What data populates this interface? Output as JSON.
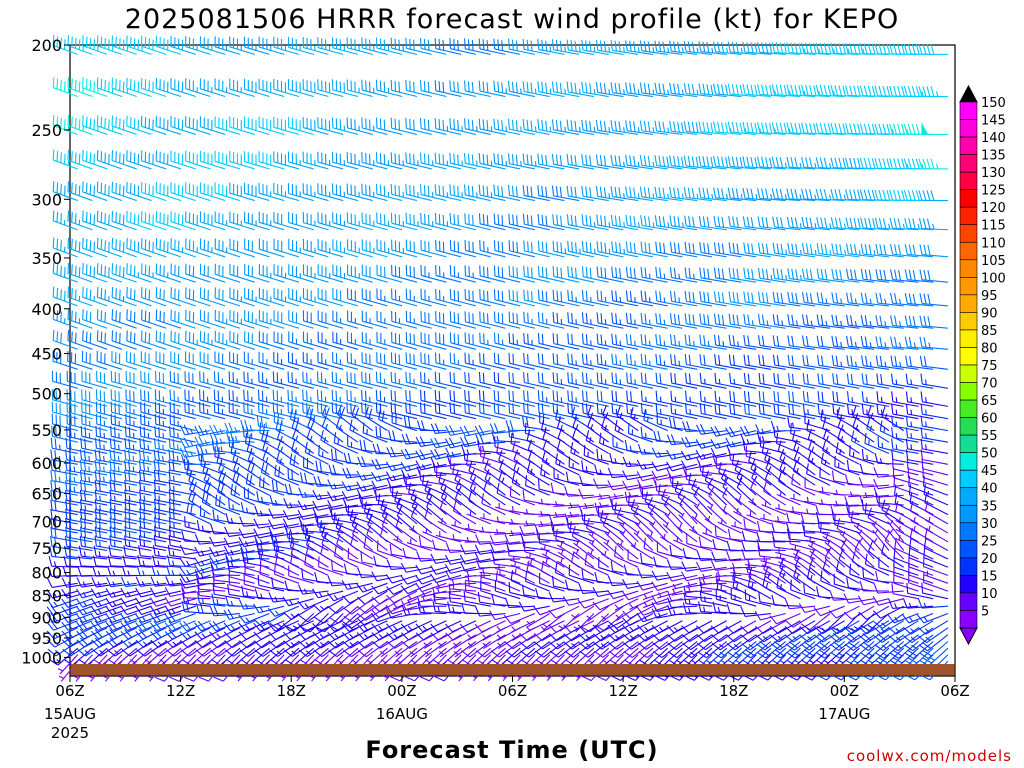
{
  "chart_data": {
    "type": "wind_barb_profile",
    "title": "2025081506 HRRR forecast wind profile (kt) for KEPO",
    "xlabel": "Forecast Time (UTC)",
    "ylabel": "",
    "y_levels_hpa": [
      200,
      250,
      300,
      350,
      400,
      450,
      500,
      550,
      600,
      650,
      700,
      750,
      800,
      850,
      900,
      950,
      1000
    ],
    "y_axis": "pressure (hPa), reversed, log scale",
    "ylim": [
      1050,
      200
    ],
    "x_ticks": [
      {
        "hour": 0,
        "label": "06Z",
        "date": "15AUG",
        "year": "2025"
      },
      {
        "hour": 6,
        "label": "12Z"
      },
      {
        "hour": 12,
        "label": "18Z"
      },
      {
        "hour": 18,
        "label": "00Z",
        "date": "16AUG"
      },
      {
        "hour": 24,
        "label": "06Z"
      },
      {
        "hour": 30,
        "label": "12Z"
      },
      {
        "hour": 36,
        "label": "18Z"
      },
      {
        "hour": 42,
        "label": "00Z",
        "date": "17AUG"
      },
      {
        "hour": 48,
        "label": "06Z"
      }
    ],
    "xlim_hours": [
      0,
      48
    ],
    "colorbar": {
      "label_values": [
        150,
        145,
        140,
        135,
        130,
        125,
        120,
        115,
        110,
        105,
        100,
        95,
        90,
        85,
        80,
        75,
        70,
        65,
        60,
        55,
        50,
        45,
        40,
        35,
        30,
        25,
        20,
        15,
        10,
        5
      ],
      "colors": [
        "#ff00ff",
        "#ff00dd",
        "#ff00aa",
        "#ff0077",
        "#ff0044",
        "#ff0000",
        "#ff2200",
        "#ff4400",
        "#ff6600",
        "#ff8800",
        "#ff9900",
        "#ffaa00",
        "#ffcc00",
        "#ffee00",
        "#ffff00",
        "#ccff00",
        "#88ff00",
        "#44ee22",
        "#22dd55",
        "#11dd99",
        "#00eedd",
        "#00ccff",
        "#00aaff",
        "#0099ff",
        "#0077ff",
        "#0055ff",
        "#0033ff",
        "#2200ff",
        "#6600ff",
        "#8800ff"
      ],
      "top_arrow_color": "#000000",
      "bottom_arrow_color": "#8800ff"
    },
    "wind_profile": [
      {
        "level": 200,
        "speed_early": 42,
        "speed_mid": 30,
        "speed_late": 44,
        "dir_early": 290,
        "dir_late": 270
      },
      {
        "level": 250,
        "speed_early": 45,
        "speed_mid": 32,
        "speed_late": 48,
        "dir_early": 290,
        "dir_late": 270
      },
      {
        "level": 300,
        "speed_early": 42,
        "speed_mid": 32,
        "speed_late": 38,
        "dir_early": 290,
        "dir_late": 270
      },
      {
        "level": 350,
        "speed_early": 38,
        "speed_mid": 30,
        "speed_late": 33,
        "dir_early": 290,
        "dir_late": 275
      },
      {
        "level": 400,
        "speed_early": 35,
        "speed_mid": 27,
        "speed_late": 28,
        "dir_early": 290,
        "dir_late": 275
      },
      {
        "level": 450,
        "speed_early": 32,
        "speed_mid": 25,
        "speed_late": 22,
        "dir_early": 290,
        "dir_late": 275
      },
      {
        "level": 500,
        "speed_early": 30,
        "speed_mid": 22,
        "speed_late": 17,
        "dir_early": 285,
        "dir_late": 280
      },
      {
        "level": 550,
        "speed_early": 28,
        "speed_mid": 18,
        "speed_late": 15,
        "dir_early": 285,
        "dir_late": 280
      },
      {
        "level": 600,
        "speed_early": 25,
        "speed_mid": 12,
        "speed_late": 12,
        "dir_early": 280,
        "dir_late": 280
      },
      {
        "level": 650,
        "speed_early": 22,
        "speed_mid": 10,
        "speed_late": 10,
        "dir_early": 280,
        "dir_late": 290
      },
      {
        "level": 700,
        "speed_early": 20,
        "speed_mid": 8,
        "speed_late": 9,
        "dir_early": 280,
        "dir_late": 300
      },
      {
        "level": 750,
        "speed_early": 18,
        "speed_mid": 8,
        "speed_late": 8,
        "dir_early": 280,
        "dir_late": 300
      },
      {
        "level": 800,
        "speed_early": 14,
        "speed_mid": 8,
        "speed_late": 8,
        "dir_early": 270,
        "dir_late": 290
      },
      {
        "level": 850,
        "speed_early": 12,
        "speed_mid": 9,
        "speed_late": 12,
        "dir_early": 250,
        "dir_late": 290
      },
      {
        "level": 900,
        "speed_early": 22,
        "speed_mid": 9,
        "speed_late": 14,
        "dir_early": 250,
        "dir_late": 240
      },
      {
        "level": 950,
        "speed_early": 15,
        "speed_mid": 8,
        "speed_late": 22,
        "dir_early": 240,
        "dir_late": 230
      },
      {
        "level": 1000,
        "speed_early": 6,
        "speed_mid": 6,
        "speed_late": 20,
        "dir_early": 220,
        "dir_late": 225
      }
    ],
    "terrain_color": "#a0522d",
    "grid": false,
    "legend": "colorbar right"
  },
  "credit": "coolwx.com/models"
}
